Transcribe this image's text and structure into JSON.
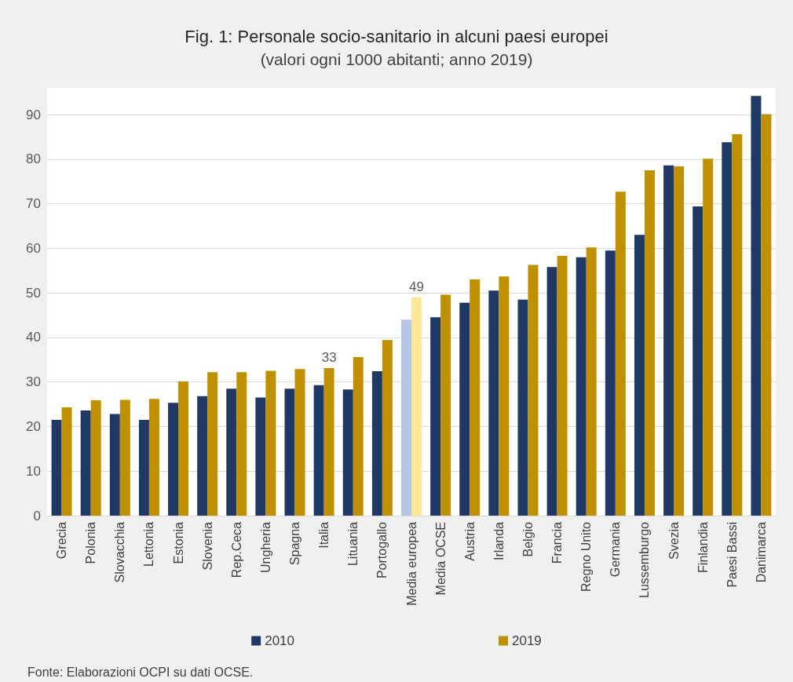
{
  "chart_data": {
    "type": "bar",
    "title": "Fig. 1: Personale socio-sanitario in alcuni paesi europei",
    "subtitle": "(valori ogni 1000 abitanti; anno 2019)",
    "categories": [
      "Grecia",
      "Polonia",
      "Slovacchia",
      "Lettonia",
      "Estonia",
      "Slovenia",
      "Rep.Ceca",
      "Ungheria",
      "Spagna",
      "Italia",
      "Lituania",
      "Portogallo",
      "Media europea",
      "Media OCSE",
      "Austria",
      "Irlanda",
      "Belgio",
      "Francia",
      "Regno Unito",
      "Germania",
      "Lussemburgo",
      "Svezia",
      "Finlandia",
      "Paesi Bassi",
      "Danimarca"
    ],
    "series": [
      {
        "name": "2010",
        "color": "#1f3864",
        "colors": [
          "#1f3864",
          "#1f3864",
          "#1f3864",
          "#1f3864",
          "#1f3864",
          "#1f3864",
          "#1f3864",
          "#1f3864",
          "#1f3864",
          "#1f3864",
          "#1f3864",
          "#1f3864",
          "#b4c7e7",
          "#1f3864",
          "#1f3864",
          "#1f3864",
          "#1f3864",
          "#1f3864",
          "#1f3864",
          "#1f3864",
          "#1f3864",
          "#1f3864",
          "#1f3864",
          "#1f3864",
          "#1f3864"
        ],
        "values": [
          21.5,
          23.6,
          22.8,
          21.5,
          25.3,
          26.8,
          28.5,
          26.5,
          28.5,
          29.3,
          28.3,
          32.4,
          44.0,
          44.5,
          47.8,
          50.5,
          48.5,
          55.8,
          58.0,
          59.5,
          63.0,
          78.6,
          69.4,
          83.8,
          94.2
        ]
      },
      {
        "name": "2019",
        "color": "#bf9000",
        "colors": [
          "#bf9000",
          "#bf9000",
          "#bf9000",
          "#bf9000",
          "#bf9000",
          "#bf9000",
          "#bf9000",
          "#bf9000",
          "#bf9000",
          "#bf9000",
          "#bf9000",
          "#bf9000",
          "#ffe699",
          "#bf9000",
          "#bf9000",
          "#bf9000",
          "#bf9000",
          "#bf9000",
          "#bf9000",
          "#bf9000",
          "#bf9000",
          "#bf9000",
          "#bf9000",
          "#bf9000",
          "#bf9000"
        ],
        "values": [
          24.3,
          25.9,
          26.0,
          26.2,
          30.1,
          32.2,
          32.2,
          32.5,
          32.9,
          33.1,
          35.6,
          39.4,
          49.0,
          49.6,
          53.0,
          53.7,
          56.3,
          58.3,
          60.2,
          72.7,
          77.5,
          78.4,
          80.1,
          85.6,
          90.1
        ],
        "value_labels": [
          null,
          null,
          null,
          null,
          null,
          null,
          null,
          null,
          null,
          "33",
          null,
          null,
          "49",
          null,
          null,
          null,
          null,
          null,
          null,
          null,
          null,
          null,
          null,
          null,
          null
        ]
      }
    ],
    "ylim": [
      0,
      96
    ],
    "yticks": [
      0,
      10,
      20,
      30,
      40,
      50,
      60,
      70,
      80,
      90
    ],
    "grid": "y",
    "legend": "bottom",
    "annotations": [
      "Fonte: Elaborazioni OCPI su dati OCSE."
    ]
  }
}
